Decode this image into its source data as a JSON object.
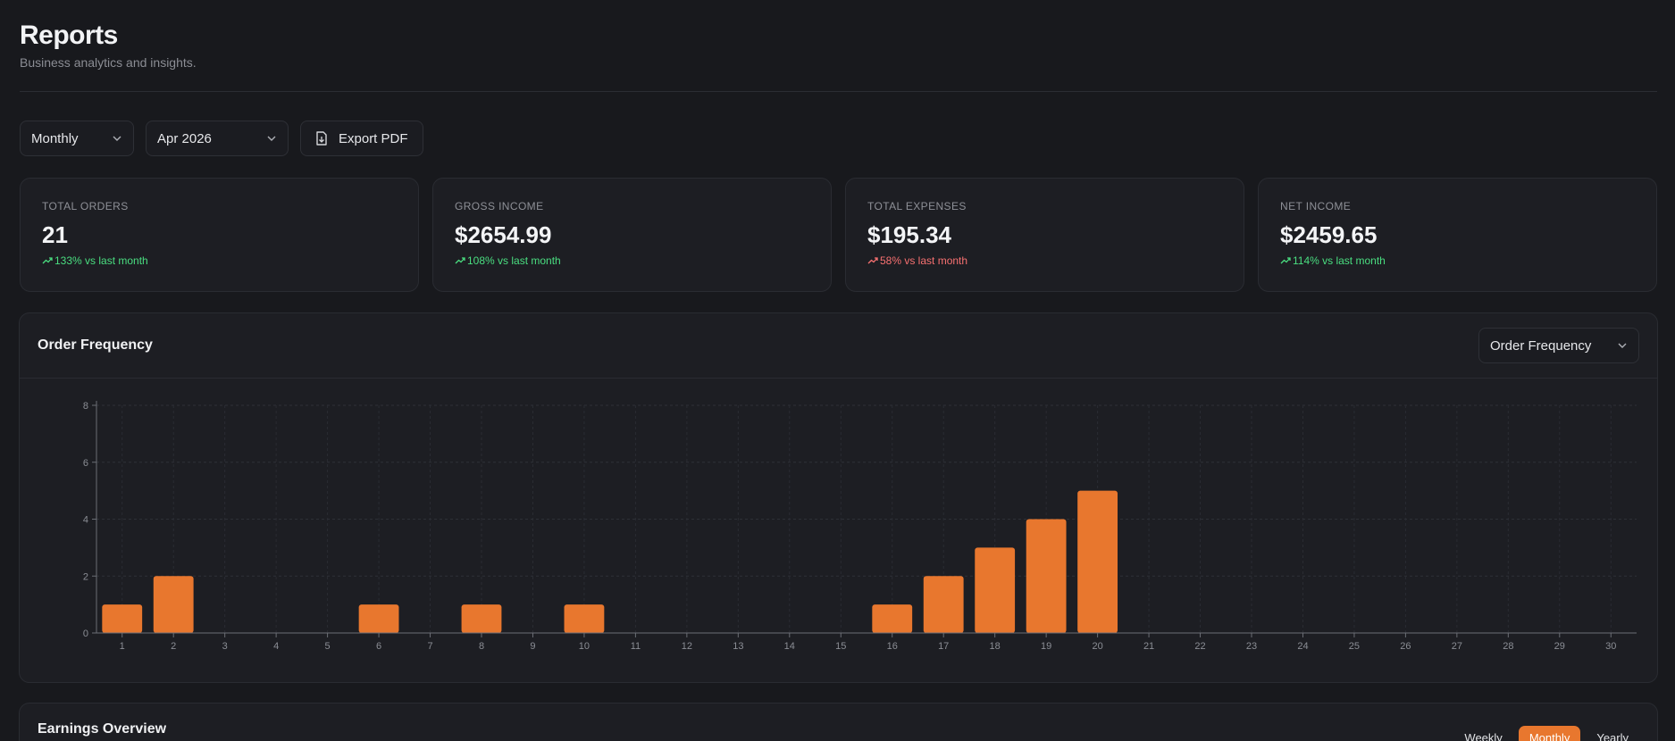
{
  "header": {
    "title": "Reports",
    "subtitle": "Business analytics and insights."
  },
  "toolbar": {
    "period_select": "Monthly",
    "month_select": "Apr 2026",
    "export_label": "Export PDF"
  },
  "stats": [
    {
      "label": "TOTAL ORDERS",
      "value": "21",
      "delta": "133% vs last month",
      "trend": "up"
    },
    {
      "label": "GROSS INCOME",
      "value": "$2654.99",
      "delta": "108% vs last month",
      "trend": "up"
    },
    {
      "label": "TOTAL EXPENSES",
      "value": "$195.34",
      "delta": "58% vs last month",
      "trend": "down"
    },
    {
      "label": "NET INCOME",
      "value": "$2459.65",
      "delta": "114% vs last month",
      "trend": "up"
    }
  ],
  "order_chart": {
    "title": "Order Frequency",
    "metric_select": "Order Frequency"
  },
  "earnings": {
    "title": "Earnings Overview",
    "tabs": [
      "Weekly",
      "Monthly",
      "Yearly"
    ],
    "active_tab": 1
  },
  "colors": {
    "accent": "#e8772e",
    "positive": "#4ade80",
    "negative": "#f87171"
  },
  "chart_data": {
    "type": "bar",
    "title": "Order Frequency",
    "xlabel": "",
    "ylabel": "",
    "categories": [
      "1",
      "2",
      "3",
      "4",
      "5",
      "6",
      "7",
      "8",
      "9",
      "10",
      "11",
      "12",
      "13",
      "14",
      "15",
      "16",
      "17",
      "18",
      "19",
      "20",
      "21",
      "22",
      "23",
      "24",
      "25",
      "26",
      "27",
      "28",
      "29",
      "30"
    ],
    "values": [
      1,
      2,
      0,
      0,
      0,
      1,
      0,
      1,
      0,
      1,
      0,
      0,
      0,
      0,
      0,
      1,
      2,
      3,
      4,
      5,
      0,
      0,
      0,
      0,
      0,
      0,
      0,
      0,
      0,
      0
    ],
    "ylim": [
      0,
      8
    ],
    "yticks": [
      0,
      2,
      4,
      6,
      8
    ],
    "grid": true,
    "color": "#e8772e"
  }
}
